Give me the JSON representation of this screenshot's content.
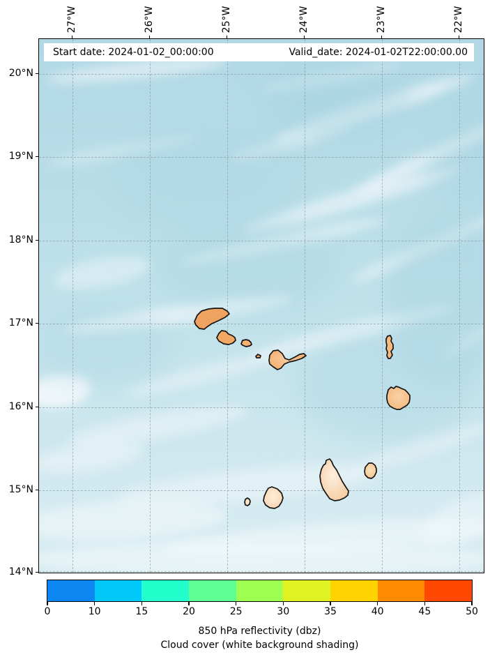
{
  "title_bar": {
    "start_label": "Start date: 2024-01-02_00:00:00",
    "valid_label": "Valid_date: 2024-01-02T22:00:00.00"
  },
  "axes": {
    "top_tick_labels": [
      "27°W",
      "26°W",
      "25°W",
      "24°W",
      "23°W",
      "22°W"
    ],
    "left_tick_labels": [
      "20°N",
      "19°N",
      "18°N",
      "17°N",
      "16°N",
      "15°N",
      "14°N"
    ]
  },
  "colorbar": {
    "tick_labels": [
      "0",
      "10",
      "15",
      "20",
      "25",
      "30",
      "35",
      "40",
      "45",
      "50"
    ],
    "segment_colors": [
      "#0d86f1",
      "#00c8fa",
      "#22ffcc",
      "#5eff93",
      "#9eff50",
      "#def321",
      "#ffd300",
      "#ff8c00",
      "#ff4700"
    ],
    "caption_line1": "850 hPa reflectivity (dbz)",
    "caption_line2": "Cloud cover (white background shading)"
  },
  "map_colors": {
    "ocean_base": "#bcdfe9",
    "cloud_shading": "#f0f7f9",
    "island_fill_north": "#f0a261",
    "island_fill_south": "#f9dec2",
    "coastline": "#141414"
  },
  "chart_data": {
    "type": "heatmap",
    "title": "",
    "x_tick_labels": [
      "27°W",
      "26°W",
      "25°W",
      "24°W",
      "23°W",
      "22°W"
    ],
    "y_tick_labels": [
      "20°N",
      "19°N",
      "18°N",
      "17°N",
      "16°N",
      "15°N",
      "14°N"
    ],
    "colorbar_values": [
      0,
      10,
      15,
      20,
      25,
      30,
      35,
      40,
      45,
      50
    ],
    "colorbar_label": "850 hPa reflectivity (dbz)",
    "colorbar_note": "Cloud cover (white background shading)",
    "legend_position": "bottom",
    "grid": "dashed"
  }
}
